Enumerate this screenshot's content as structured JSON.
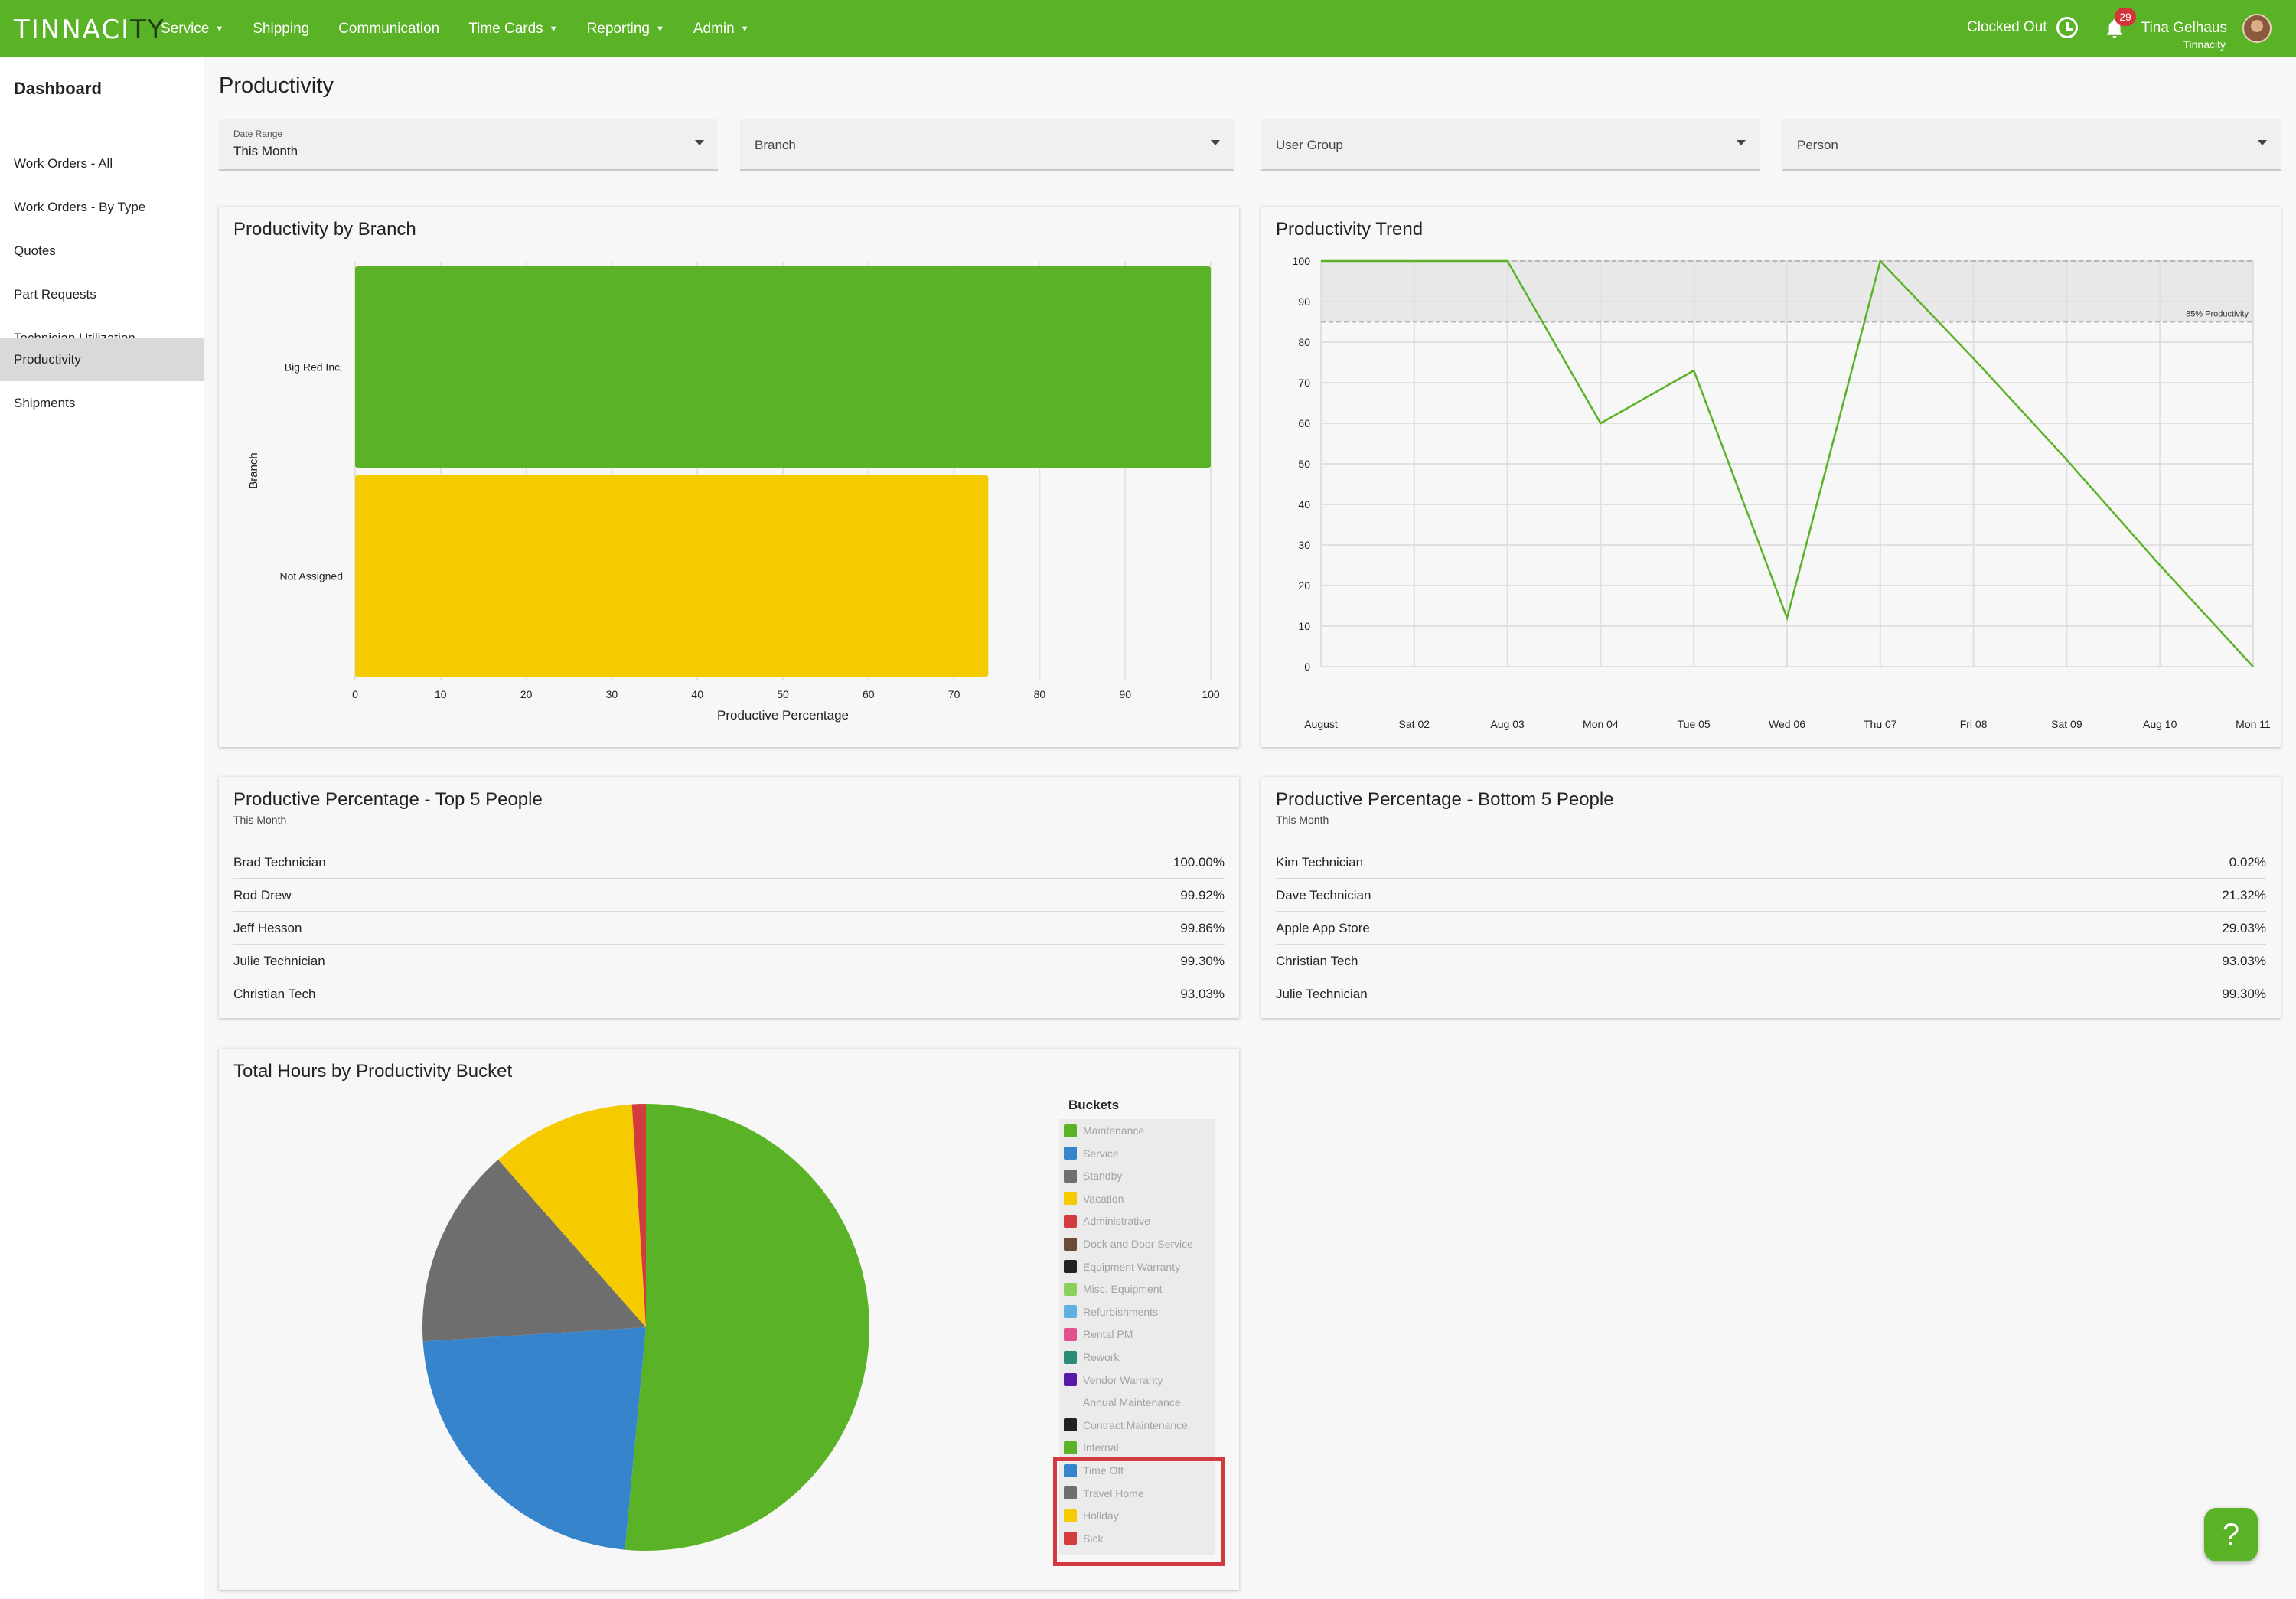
{
  "topbar": {
    "logo_part1": "TINNACI",
    "logo_part2": "TY",
    "nav": [
      {
        "label": "Service",
        "dropdown": true
      },
      {
        "label": "Shipping",
        "dropdown": false
      },
      {
        "label": "Communication",
        "dropdown": false
      },
      {
        "label": "Time Cards",
        "dropdown": true
      },
      {
        "label": "Reporting",
        "dropdown": true
      },
      {
        "label": "Admin",
        "dropdown": true
      }
    ],
    "clock_status": "Clocked Out",
    "notification_count": "29",
    "user_name": "Tina Gelhaus",
    "user_org": "Tinnacity"
  },
  "sidebar": {
    "title": "Dashboard",
    "items": [
      {
        "label": "Work Orders - All",
        "active": false
      },
      {
        "label": "Work Orders - By Type",
        "active": false
      },
      {
        "label": "Quotes",
        "active": false
      },
      {
        "label": "Part Requests",
        "active": false
      },
      {
        "label": "Technician Utilization",
        "active": false
      },
      {
        "label": "Productivity",
        "active": true
      },
      {
        "label": "Shipments",
        "active": false
      }
    ]
  },
  "page": {
    "title": "Productivity"
  },
  "filters": {
    "date_range_label": "Date Range",
    "date_range_value": "This Month",
    "branch_placeholder": "Branch",
    "user_group_placeholder": "User Group",
    "person_placeholder": "Person"
  },
  "cards": {
    "by_branch_title": "Productivity by Branch",
    "trend_title": "Productivity Trend",
    "top5_title": "Productive Percentage - Top 5 People",
    "top5_sub": "This Month",
    "bottom5_title": "Productive Percentage - Bottom 5 People",
    "bottom5_sub": "This Month",
    "buckets_title": "Total Hours by Productivity Bucket"
  },
  "top5": [
    {
      "name": "Brad Technician",
      "value": "100.00%"
    },
    {
      "name": "Rod Drew",
      "value": "99.92%"
    },
    {
      "name": "Jeff Hesson",
      "value": "99.86%"
    },
    {
      "name": "Julie Technician",
      "value": "99.30%"
    },
    {
      "name": "Christian Tech",
      "value": "93.03%"
    }
  ],
  "bottom5": [
    {
      "name": "Kim Technician",
      "value": "0.02%"
    },
    {
      "name": "Dave Technician",
      "value": "21.32%"
    },
    {
      "name": "Apple App Store",
      "value": "29.03%"
    },
    {
      "name": "Christian Tech",
      "value": "93.03%"
    },
    {
      "name": "Julie Technician",
      "value": "99.30%"
    }
  ],
  "chart_data": [
    {
      "type": "bar",
      "orientation": "horizontal",
      "categories": [
        "Big Red Inc.",
        "Not Assigned"
      ],
      "values": [
        100,
        74
      ],
      "colors": [
        "#5ab226",
        "#f5cb00"
      ],
      "xlabel": "Productive Percentage",
      "ylabel": "Branch",
      "xlim": [
        0,
        100
      ],
      "xticks": [
        "0",
        "10",
        "20",
        "30",
        "40",
        "50",
        "60",
        "70",
        "80",
        "90",
        "100"
      ],
      "grid": true
    },
    {
      "type": "line",
      "x": [
        "August",
        "Sat 02",
        "Aug 03",
        "Mon 04",
        "Tue 05",
        "Wed 06",
        "Thu 07",
        "Fri 08",
        "Sat 09",
        "Aug 10",
        "Mon 11"
      ],
      "series": [
        {
          "values": [
            100,
            100,
            100,
            60,
            73,
            12,
            100,
            76,
            51,
            25,
            0
          ],
          "color": "#5ab226"
        }
      ],
      "ylim": [
        0,
        100
      ],
      "yticks": [
        "0",
        "10",
        "20",
        "30",
        "40",
        "50",
        "60",
        "70",
        "80",
        "90",
        "100"
      ],
      "band": {
        "from": 85,
        "to": 100,
        "label": "85% Productivity"
      },
      "grid": true
    },
    {
      "type": "pie",
      "legend_title": "Buckets",
      "legend_placement": "right",
      "slices": [
        {
          "label": "Maintenance",
          "value": 51.5,
          "color": "#5ab226"
        },
        {
          "label": "Service",
          "value": 22.5,
          "color": "#3584cc"
        },
        {
          "label": "Standby",
          "value": 14.5,
          "color": "#6e6e6e"
        },
        {
          "label": "Vacation",
          "value": 10.5,
          "color": "#f5cb00"
        },
        {
          "label": "Administrative",
          "value": 1.0,
          "color": "#d33b3f"
        }
      ],
      "legend": [
        {
          "label": "Maintenance",
          "color": "#5ab226"
        },
        {
          "label": "Service",
          "color": "#3584cc"
        },
        {
          "label": "Standby",
          "color": "#6e6e6e"
        },
        {
          "label": "Vacation",
          "color": "#f5cb00"
        },
        {
          "label": "Administrative",
          "color": "#d33b3f"
        },
        {
          "label": "Dock and Door Service",
          "color": "#6b4a3a"
        },
        {
          "label": "Equipment Warranty",
          "color": "#222222"
        },
        {
          "label": "Misc. Equipment",
          "color": "#8bd25c"
        },
        {
          "label": "Refurbishments",
          "color": "#5fb1e0"
        },
        {
          "label": "Rental PM",
          "color": "#e2508d"
        },
        {
          "label": "Rework",
          "color": "#2a8c78"
        },
        {
          "label": "Vendor Warranty",
          "color": "#5a1aa8"
        },
        {
          "label": "Annual Maintenance",
          "color": "#ebebeb"
        },
        {
          "label": "Contract Maintenance",
          "color": "#222222"
        },
        {
          "label": "Internal",
          "color": "#5ab226"
        },
        {
          "label": "Time Off",
          "color": "#3584cc"
        },
        {
          "label": "Travel Home",
          "color": "#6e6e6e"
        },
        {
          "label": "Holiday",
          "color": "#f5cb00"
        },
        {
          "label": "Sick",
          "color": "#d33b3f"
        }
      ]
    }
  ]
}
